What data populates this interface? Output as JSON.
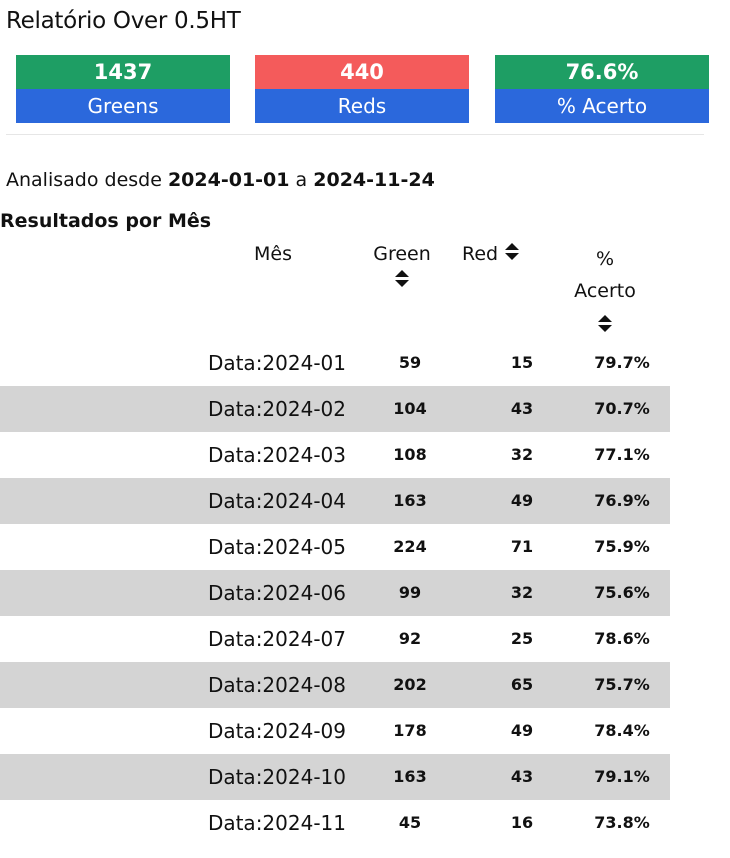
{
  "header": {
    "title": "Relatório Over 0.5HT"
  },
  "summary": {
    "greens": {
      "value": "1437",
      "label": "Greens",
      "color": "#1e9e64"
    },
    "reds": {
      "value": "440",
      "label": "Reds",
      "color": "#f45b5b"
    },
    "accuracy": {
      "value": "76.6%",
      "label": "% Acerto",
      "color": "#1e9e64"
    },
    "label_color": "#2b68dc"
  },
  "period": {
    "prefix": "Analisado desde",
    "start": "2024-01-01",
    "connector": "a",
    "end": "2024-11-24"
  },
  "table": {
    "title": "Resultados por Mês",
    "columns": {
      "month": "Mês",
      "green": "Green",
      "red": "Red",
      "pct_line1": "%",
      "pct_line2": "Acerto"
    },
    "rows": [
      {
        "month": "Data:2024-01",
        "green": "59",
        "red": "15",
        "pct": "79.7%"
      },
      {
        "month": "Data:2024-02",
        "green": "104",
        "red": "43",
        "pct": "70.7%"
      },
      {
        "month": "Data:2024-03",
        "green": "108",
        "red": "32",
        "pct": "77.1%"
      },
      {
        "month": "Data:2024-04",
        "green": "163",
        "red": "49",
        "pct": "76.9%"
      },
      {
        "month": "Data:2024-05",
        "green": "224",
        "red": "71",
        "pct": "75.9%"
      },
      {
        "month": "Data:2024-06",
        "green": "99",
        "red": "32",
        "pct": "75.6%"
      },
      {
        "month": "Data:2024-07",
        "green": "92",
        "red": "25",
        "pct": "78.6%"
      },
      {
        "month": "Data:2024-08",
        "green": "202",
        "red": "65",
        "pct": "75.7%"
      },
      {
        "month": "Data:2024-09",
        "green": "178",
        "red": "49",
        "pct": "78.4%"
      },
      {
        "month": "Data:2024-10",
        "green": "163",
        "red": "43",
        "pct": "79.1%"
      },
      {
        "month": "Data:2024-11",
        "green": "45",
        "red": "16",
        "pct": "73.8%"
      }
    ],
    "stripe_color": "#d4d4d4"
  },
  "icons": {
    "sort": "sort-updown-icon"
  }
}
